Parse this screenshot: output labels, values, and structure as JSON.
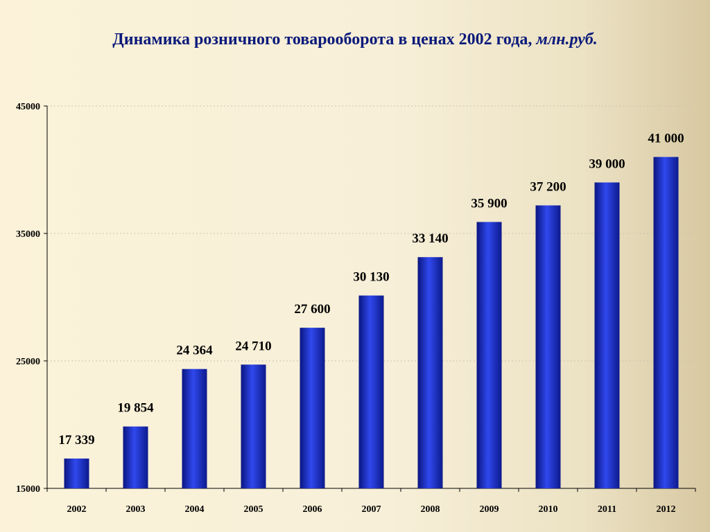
{
  "chart_data": {
    "type": "bar",
    "title": "Динамика розничного товарооборота в ценах 2002 года,",
    "title_unit": "млн.руб.",
    "categories": [
      "2002",
      "2003",
      "2004",
      "2005",
      "2006",
      "2007",
      "2008",
      "2009",
      "2010",
      "2011",
      "2012"
    ],
    "values": [
      17339,
      19854,
      24364,
      24710,
      27600,
      30130,
      33140,
      35900,
      37200,
      39000,
      41000
    ],
    "value_labels": [
      "17 339",
      "19 854",
      "24 364",
      "24 710",
      "27 600",
      "30 130",
      "33 140",
      "35 900",
      "37 200",
      "39 000",
      "41 000"
    ],
    "ylim": [
      15000,
      45000
    ],
    "y_ticks": [
      15000,
      25000,
      35000,
      45000
    ],
    "y_tick_labels": [
      "15000",
      "25000",
      "35000",
      "45000"
    ],
    "xlabel": "",
    "ylabel": "",
    "grid": true,
    "bar_color": "#2537d8"
  }
}
